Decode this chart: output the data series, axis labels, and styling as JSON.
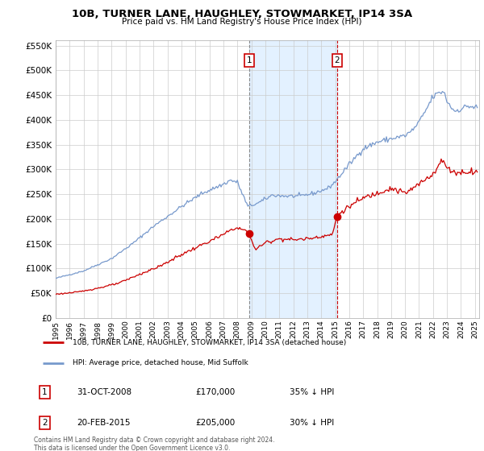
{
  "title": "10B, TURNER LANE, HAUGHLEY, STOWMARKET, IP14 3SA",
  "subtitle": "Price paid vs. HM Land Registry's House Price Index (HPI)",
  "hpi_label": "HPI: Average price, detached house, Mid Suffolk",
  "property_label": "10B, TURNER LANE, HAUGHLEY, STOWMARKET, IP14 3SA (detached house)",
  "annotation1": {
    "label": "1",
    "date_str": "31-OCT-2008",
    "price_str": "£170,000",
    "pct_str": "35% ↓ HPI",
    "x_year": 2008.83,
    "y_val": 170000
  },
  "annotation2": {
    "label": "2",
    "date_str": "20-FEB-2015",
    "price_str": "£205,000",
    "pct_str": "30% ↓ HPI",
    "x_year": 2015.12,
    "y_val": 205000
  },
  "vline1_x": 2008.83,
  "vline2_x": 2015.12,
  "shade_start": 2008.83,
  "shade_end": 2015.12,
  "ylim": [
    0,
    560000
  ],
  "xlim_start": 1995.0,
  "xlim_end": 2025.3,
  "hpi_color": "#7799cc",
  "property_color": "#cc0000",
  "footer_text": "Contains HM Land Registry data © Crown copyright and database right 2024.\nThis data is licensed under the Open Government Licence v3.0.",
  "background_color": "#ffffff",
  "grid_color": "#cccccc",
  "shade_color": "#ddeeff"
}
